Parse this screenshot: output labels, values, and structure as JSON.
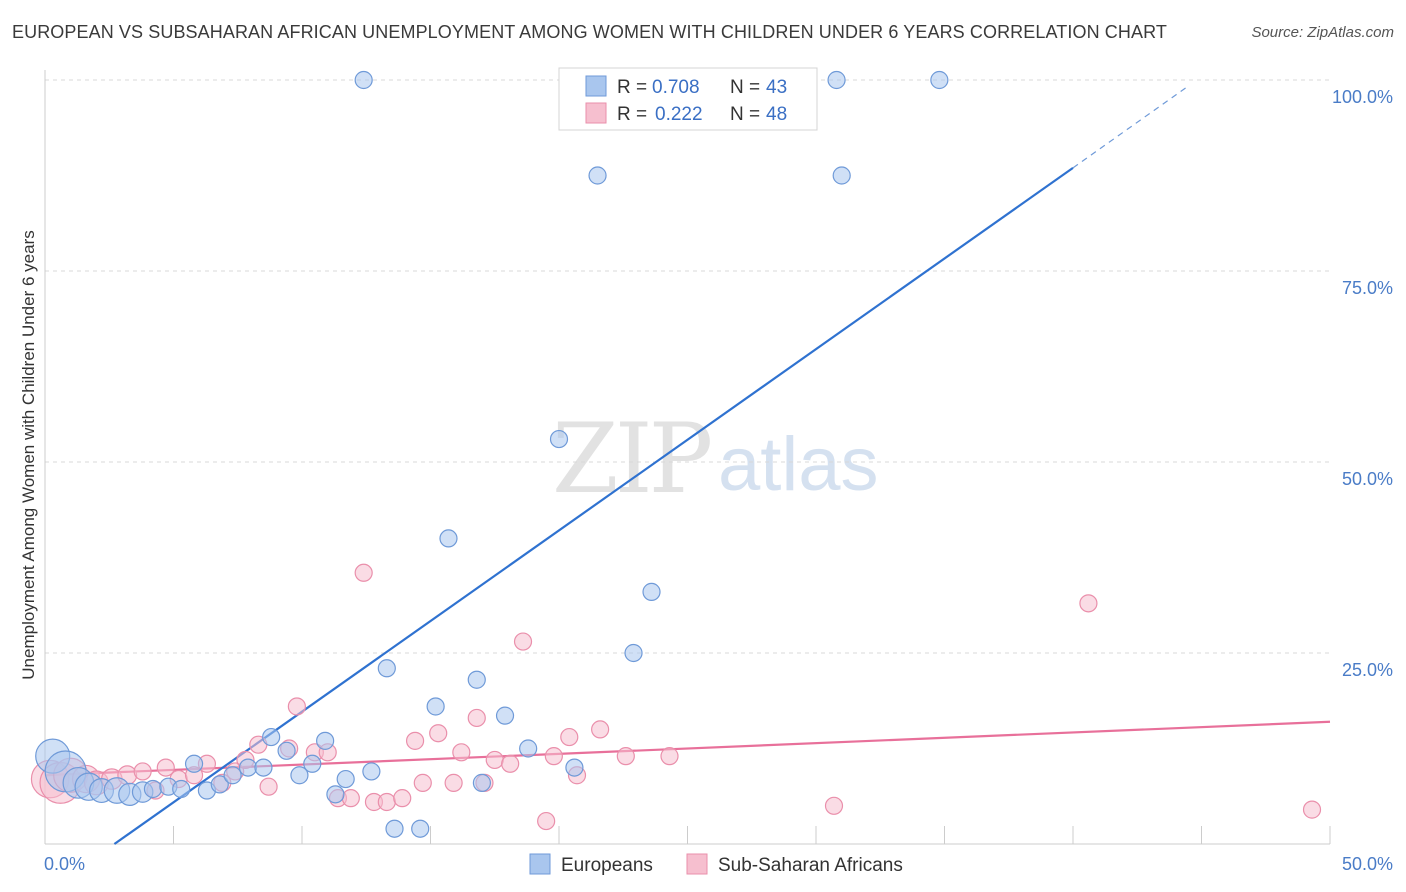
{
  "title": "EUROPEAN VS SUBSAHARAN AFRICAN UNEMPLOYMENT AMONG WOMEN WITH CHILDREN UNDER 6 YEARS CORRELATION CHART",
  "source": "Source: ZipAtlas.com",
  "watermark": {
    "zip": "ZIP",
    "atlas": "atlas"
  },
  "colors": {
    "blue_fill": "#a9c6ee",
    "blue_stroke": "#6f9ad8",
    "blue_line": "#2f72d0",
    "pink_fill": "#f6bfcf",
    "pink_stroke": "#ea8fab",
    "pink_line": "#e8709a",
    "grid": "#d8d8d8",
    "tick_text": "#4a7cc7"
  },
  "legend": {
    "rows": [
      {
        "r_label": "R = ",
        "r_value": "0.708",
        "n_label": "N = ",
        "n_value": "43"
      },
      {
        "r_label": "R = ",
        "r_value": "0.222",
        "n_label": "N = ",
        "n_value": "48"
      }
    ]
  },
  "chart_data": {
    "type": "scatter",
    "title": "EUROPEAN VS SUBSAHARAN AFRICAN UNEMPLOYMENT AMONG WOMEN WITH CHILDREN UNDER 6 YEARS CORRELATION CHART",
    "xlabel": "",
    "ylabel": "Unemployment Among Women with Children Under 6 years",
    "xlim": [
      0,
      50
    ],
    "ylim": [
      0,
      105
    ],
    "x_tick_labels": [
      "0.0%",
      "50.0%"
    ],
    "y_tick_labels": [
      "100.0%",
      "75.0%",
      "50.0%",
      "25.0%"
    ],
    "y_ticks": [
      100,
      75,
      50,
      25
    ],
    "grid": true,
    "legend_position": "top-center",
    "series": [
      {
        "name": "Europeans",
        "color": "#a9c6ee",
        "r": 0.708,
        "n": 43,
        "trend": {
          "x": [
            2.7,
            40.0
          ],
          "y": [
            0,
            88.5
          ],
          "dashed_to": [
            44.4,
            99.0
          ]
        },
        "points": [
          {
            "x": 0.3,
            "y": 11.5,
            "s": 2.0
          },
          {
            "x": 0.8,
            "y": 9.5,
            "s": 2.4
          },
          {
            "x": 1.3,
            "y": 8.0,
            "s": 1.8
          },
          {
            "x": 1.7,
            "y": 7.5,
            "s": 1.6
          },
          {
            "x": 2.2,
            "y": 7.0,
            "s": 1.4
          },
          {
            "x": 2.8,
            "y": 7.0,
            "s": 1.5
          },
          {
            "x": 3.3,
            "y": 6.5,
            "s": 1.3
          },
          {
            "x": 3.8,
            "y": 6.8,
            "s": 1.2
          },
          {
            "x": 4.2,
            "y": 7.2,
            "s": 1.0
          },
          {
            "x": 4.8,
            "y": 7.5,
            "s": 1.0
          },
          {
            "x": 5.3,
            "y": 7.2,
            "s": 1.0
          },
          {
            "x": 5.8,
            "y": 10.5,
            "s": 1.0
          },
          {
            "x": 6.3,
            "y": 7.0,
            "s": 1.0
          },
          {
            "x": 6.8,
            "y": 7.8,
            "s": 1.0
          },
          {
            "x": 7.3,
            "y": 9.0,
            "s": 1.0
          },
          {
            "x": 7.9,
            "y": 10.0,
            "s": 1.0
          },
          {
            "x": 8.5,
            "y": 10.0,
            "s": 1.0
          },
          {
            "x": 8.8,
            "y": 14.0,
            "s": 1.0
          },
          {
            "x": 9.4,
            "y": 12.2,
            "s": 1.0
          },
          {
            "x": 9.9,
            "y": 9.0,
            "s": 1.0
          },
          {
            "x": 10.4,
            "y": 10.5,
            "s": 1.0
          },
          {
            "x": 10.9,
            "y": 13.5,
            "s": 1.0
          },
          {
            "x": 11.3,
            "y": 6.5,
            "s": 1.0
          },
          {
            "x": 11.7,
            "y": 8.5,
            "s": 1.0
          },
          {
            "x": 12.4,
            "y": 100.0,
            "s": 1.0
          },
          {
            "x": 12.7,
            "y": 9.5,
            "s": 1.0
          },
          {
            "x": 13.3,
            "y": 23.0,
            "s": 1.0
          },
          {
            "x": 13.6,
            "y": 2.0,
            "s": 1.0
          },
          {
            "x": 14.6,
            "y": 2.0,
            "s": 1.0
          },
          {
            "x": 15.2,
            "y": 18.0,
            "s": 1.0
          },
          {
            "x": 15.7,
            "y": 40.0,
            "s": 1.0
          },
          {
            "x": 16.8,
            "y": 21.5,
            "s": 1.0
          },
          {
            "x": 17.0,
            "y": 8.0,
            "s": 1.0
          },
          {
            "x": 17.9,
            "y": 16.8,
            "s": 1.0
          },
          {
            "x": 18.8,
            "y": 12.5,
            "s": 1.0
          },
          {
            "x": 20.0,
            "y": 53.0,
            "s": 1.0
          },
          {
            "x": 20.6,
            "y": 10.0,
            "s": 1.0
          },
          {
            "x": 21.5,
            "y": 87.5,
            "s": 1.0
          },
          {
            "x": 22.9,
            "y": 25.0,
            "s": 1.0
          },
          {
            "x": 23.6,
            "y": 33.0,
            "s": 1.0
          },
          {
            "x": 30.8,
            "y": 100.0,
            "s": 1.0
          },
          {
            "x": 31.0,
            "y": 87.5,
            "s": 1.0
          },
          {
            "x": 34.8,
            "y": 100.0,
            "s": 1.0
          }
        ]
      },
      {
        "name": "Sub-Saharan Africans",
        "color": "#f6bfcf",
        "r": 0.222,
        "n": 48,
        "trend": {
          "x": [
            0,
            50
          ],
          "y": [
            9.0,
            16.0
          ]
        },
        "points": [
          {
            "x": 0.2,
            "y": 8.5,
            "s": 2.2
          },
          {
            "x": 0.6,
            "y": 8.0,
            "s": 2.4
          },
          {
            "x": 1.0,
            "y": 9.0,
            "s": 2.0
          },
          {
            "x": 1.6,
            "y": 8.5,
            "s": 1.6
          },
          {
            "x": 2.0,
            "y": 8.0,
            "s": 1.4
          },
          {
            "x": 2.6,
            "y": 8.5,
            "s": 1.2
          },
          {
            "x": 3.2,
            "y": 9.0,
            "s": 1.1
          },
          {
            "x": 3.8,
            "y": 9.5,
            "s": 1.0
          },
          {
            "x": 4.3,
            "y": 7.0,
            "s": 1.0
          },
          {
            "x": 4.7,
            "y": 10.0,
            "s": 1.0
          },
          {
            "x": 5.2,
            "y": 8.5,
            "s": 1.0
          },
          {
            "x": 5.8,
            "y": 9.0,
            "s": 1.0
          },
          {
            "x": 6.3,
            "y": 10.5,
            "s": 1.0
          },
          {
            "x": 6.9,
            "y": 8.0,
            "s": 1.0
          },
          {
            "x": 7.4,
            "y": 9.5,
            "s": 1.0
          },
          {
            "x": 7.8,
            "y": 11.0,
            "s": 1.0
          },
          {
            "x": 8.3,
            "y": 13.0,
            "s": 1.0
          },
          {
            "x": 8.7,
            "y": 7.5,
            "s": 1.0
          },
          {
            "x": 9.5,
            "y": 12.5,
            "s": 1.0
          },
          {
            "x": 9.8,
            "y": 18.0,
            "s": 1.0
          },
          {
            "x": 10.5,
            "y": 12.0,
            "s": 1.0
          },
          {
            "x": 11.0,
            "y": 12.0,
            "s": 1.0
          },
          {
            "x": 11.4,
            "y": 6.0,
            "s": 1.0
          },
          {
            "x": 11.9,
            "y": 6.0,
            "s": 1.0
          },
          {
            "x": 12.4,
            "y": 35.5,
            "s": 1.0
          },
          {
            "x": 12.8,
            "y": 5.5,
            "s": 1.0
          },
          {
            "x": 13.3,
            "y": 5.5,
            "s": 1.0
          },
          {
            "x": 13.9,
            "y": 6.0,
            "s": 1.0
          },
          {
            "x": 14.4,
            "y": 13.5,
            "s": 1.0
          },
          {
            "x": 14.7,
            "y": 8.0,
            "s": 1.0
          },
          {
            "x": 15.3,
            "y": 14.5,
            "s": 1.0
          },
          {
            "x": 15.9,
            "y": 8.0,
            "s": 1.0
          },
          {
            "x": 16.2,
            "y": 12.0,
            "s": 1.0
          },
          {
            "x": 16.8,
            "y": 16.5,
            "s": 1.0
          },
          {
            "x": 17.1,
            "y": 8.0,
            "s": 1.0
          },
          {
            "x": 17.5,
            "y": 11.0,
            "s": 1.0
          },
          {
            "x": 18.1,
            "y": 10.5,
            "s": 1.0
          },
          {
            "x": 18.6,
            "y": 26.5,
            "s": 1.0
          },
          {
            "x": 19.5,
            "y": 3.0,
            "s": 1.0
          },
          {
            "x": 19.8,
            "y": 11.5,
            "s": 1.0
          },
          {
            "x": 20.4,
            "y": 14.0,
            "s": 1.0
          },
          {
            "x": 20.7,
            "y": 9.0,
            "s": 1.0
          },
          {
            "x": 21.6,
            "y": 15.0,
            "s": 1.0
          },
          {
            "x": 22.6,
            "y": 11.5,
            "s": 1.0
          },
          {
            "x": 24.3,
            "y": 11.5,
            "s": 1.0
          },
          {
            "x": 30.7,
            "y": 5.0,
            "s": 1.0
          },
          {
            "x": 40.6,
            "y": 31.5,
            "s": 1.0
          },
          {
            "x": 49.3,
            "y": 4.5,
            "s": 1.0
          }
        ]
      }
    ]
  }
}
